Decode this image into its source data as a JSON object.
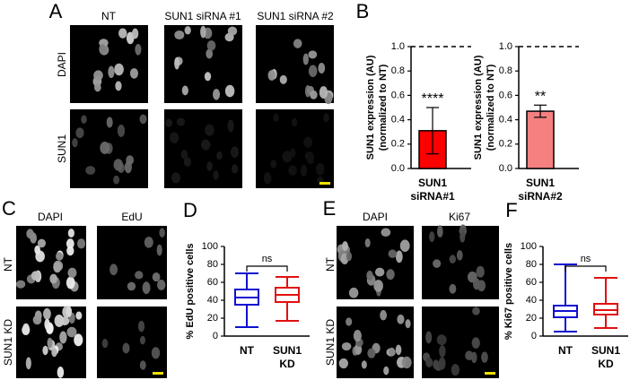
{
  "figure": {
    "panel_labels": [
      "A",
      "B",
      "C",
      "D",
      "E",
      "F"
    ],
    "panel_a": {
      "columns": [
        "NT",
        "SUN1 siRNA #1",
        "SUN1 siRNA #2"
      ],
      "rows": [
        "DAPI",
        "SUN1"
      ]
    },
    "panel_c": {
      "columns": [
        "DAPI",
        "EdU"
      ],
      "rows": [
        "NT",
        "SUN1 KD"
      ]
    },
    "panel_e": {
      "columns": [
        "DAPI",
        "Ki67"
      ],
      "rows": [
        "NT",
        "SUN1 KD"
      ]
    }
  },
  "chart_data": [
    {
      "type": "bar",
      "ylabel": [
        "SUN1 expression (AU)",
        "(normalized to NT)"
      ],
      "categories": [
        [
          "SUN1",
          "siRNA#1"
        ]
      ],
      "values": [
        0.31
      ],
      "errors": [
        0.19
      ],
      "value_annotations": [
        "****"
      ],
      "color": "#ff0000",
      "reference_line": 1,
      "ylim": [
        0,
        1
      ],
      "yticks": [
        {
          "value": 0,
          "label": "0.0"
        },
        {
          "value": 0.2,
          "label": "0.2"
        },
        {
          "value": 0.4,
          "label": "0.4"
        },
        {
          "value": 0.6,
          "label": "0.6"
        },
        {
          "value": 0.8,
          "label": "0.8"
        },
        {
          "value": 1,
          "label": "1.0"
        }
      ]
    },
    {
      "type": "bar",
      "ylabel": [
        "SUN1 expression (AU)",
        "(normalized to NT)"
      ],
      "categories": [
        [
          "SUN1",
          "siRNA#2"
        ]
      ],
      "values": [
        0.47
      ],
      "errors": [
        0.05
      ],
      "value_annotations": [
        "**"
      ],
      "color": "#f58080",
      "reference_line": 1,
      "ylim": [
        0,
        1
      ],
      "yticks": [
        {
          "value": 0,
          "label": "0.0"
        },
        {
          "value": 0.2,
          "label": "0.2"
        },
        {
          "value": 0.4,
          "label": "0.4"
        },
        {
          "value": 0.6,
          "label": "0.6"
        },
        {
          "value": 0.8,
          "label": "0.8"
        },
        {
          "value": 1,
          "label": "1.0"
        }
      ]
    },
    {
      "type": "box",
      "ylabel": [
        "% EdU positive cells"
      ],
      "categories": [
        [
          "NT"
        ],
        [
          "SUN1",
          "KD"
        ]
      ],
      "boxes": [
        {
          "color": "#1010d0",
          "min": 10,
          "q1": 35,
          "median": 43,
          "q3": 52,
          "max": 70
        },
        {
          "color": "#e01010",
          "min": 17,
          "q1": 38,
          "median": 46,
          "q3": 54,
          "max": 66
        }
      ],
      "significance": "ns",
      "ylim": [
        0,
        100
      ],
      "yticks": [
        0,
        20,
        40,
        60,
        80,
        100
      ]
    },
    {
      "type": "box",
      "ylabel": [
        "% Ki67 positive cells"
      ],
      "categories": [
        [
          "NT"
        ],
        [
          "SUN1",
          "KD"
        ]
      ],
      "boxes": [
        {
          "color": "#1010d0",
          "min": 5,
          "q1": 21,
          "median": 28,
          "q3": 34,
          "max": 80
        },
        {
          "color": "#e01010",
          "min": 9,
          "q1": 24,
          "median": 29,
          "q3": 36,
          "max": 65
        }
      ],
      "significance": "ns",
      "ylim": [
        0,
        100
      ],
      "yticks": [
        0,
        20,
        40,
        60,
        80,
        100
      ]
    }
  ]
}
